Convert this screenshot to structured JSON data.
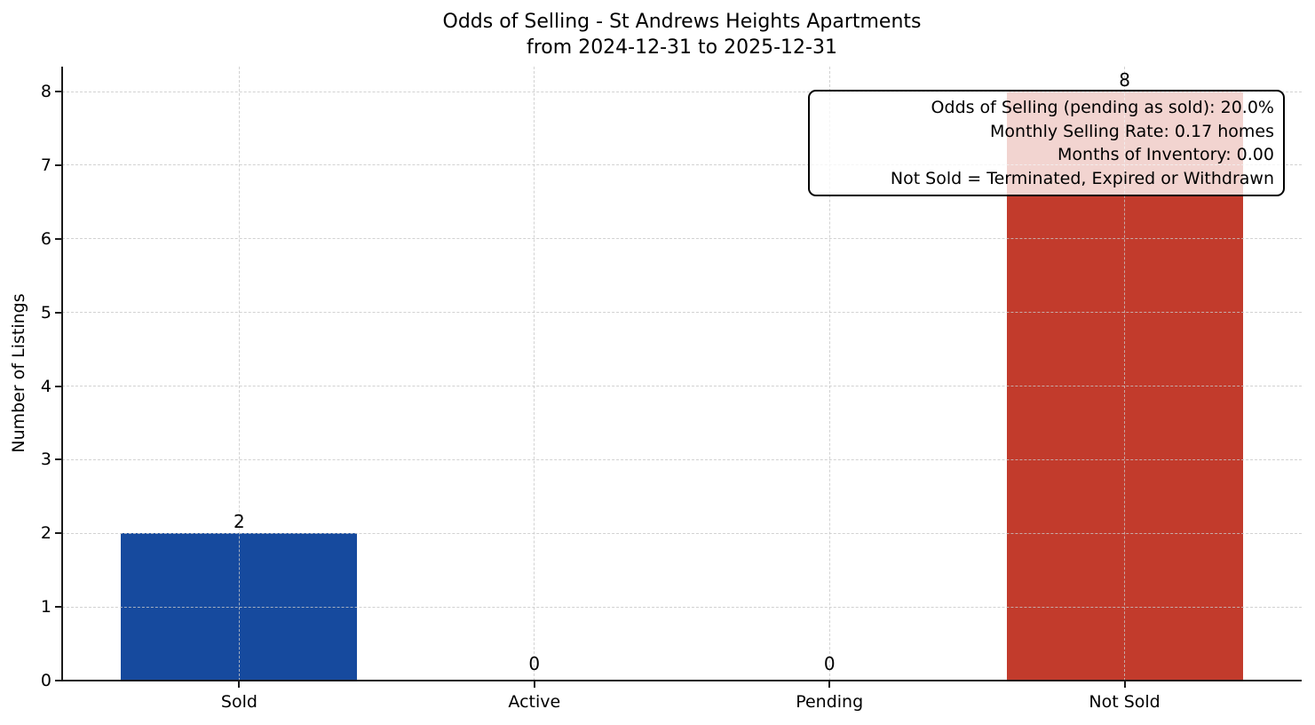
{
  "chart_data": {
    "type": "bar",
    "title": "Odds of Selling - St Andrews Heights Apartments",
    "subtitle": "from 2024-12-31 to 2025-12-31",
    "categories": [
      "Sold",
      "Active",
      "Pending",
      "Not Sold"
    ],
    "values": [
      2,
      0,
      0,
      8
    ],
    "value_labels": [
      "2",
      "0",
      "0",
      "8"
    ],
    "xlabel": "",
    "ylabel": "Number of Listings",
    "ylim": [
      0,
      8.34
    ],
    "yticks": [
      0,
      1,
      2,
      3,
      4,
      5,
      6,
      7,
      8
    ],
    "grid": "dashed, drawn over bars, both axes at category centers and integer y values",
    "legend": "none",
    "bar_colors": {
      "Sold": "#164a9e",
      "Not Sold": "#c23b2c"
    },
    "axis_color": "#1a1a1a",
    "grid_color": "#c7c7c7",
    "annotation": {
      "lines": [
        "Odds of Selling (pending as sold): 20.0%",
        "Monthly Selling Rate: 0.17 homes",
        "Months of Inventory: 0.00",
        "Not Sold = Terminated, Expired or Withdrawn"
      ]
    }
  }
}
